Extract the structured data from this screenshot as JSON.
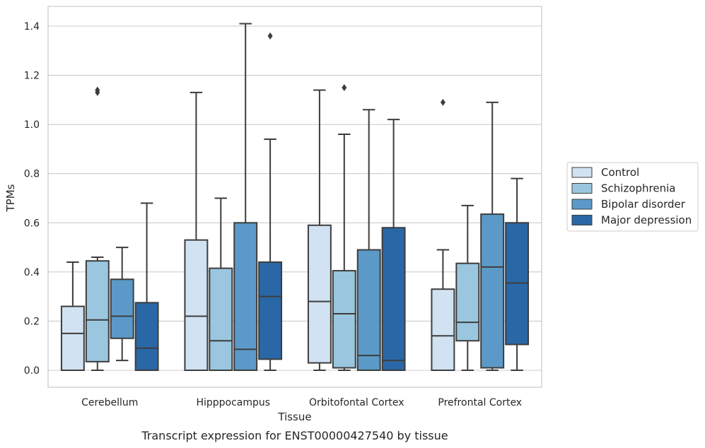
{
  "caption": "Transcript expression for ENST00000427540 by tissue",
  "chart_data": {
    "type": "box",
    "xlabel": "Tissue",
    "ylabel": "TPMs",
    "ylim": [
      -0.07,
      1.48
    ],
    "yticks": [
      "0.0",
      "0.2",
      "0.4",
      "0.6",
      "0.8",
      "1.0",
      "1.2",
      "1.4"
    ],
    "grid": true,
    "legend_position": "right",
    "categories": [
      "Cerebellum",
      "Hipppocampus",
      "Orbitofontal Cortex",
      "Prefrontal Cortex"
    ],
    "series": [
      {
        "name": "Control",
        "color": "#d1e2f2",
        "boxes": [
          {
            "min": 0.0,
            "q1": 0.0,
            "median": 0.15,
            "q3": 0.26,
            "max": 0.44,
            "outliers": []
          },
          {
            "min": 0.0,
            "q1": 0.0,
            "median": 0.22,
            "q3": 0.53,
            "max": 1.13,
            "outliers": []
          },
          {
            "min": 0.0,
            "q1": 0.03,
            "median": 0.28,
            "q3": 0.59,
            "max": 1.14,
            "outliers": []
          },
          {
            "min": 0.0,
            "q1": 0.0,
            "median": 0.14,
            "q3": 0.33,
            "max": 0.49,
            "outliers": [
              1.09
            ]
          }
        ]
      },
      {
        "name": "Schizophrenia",
        "color": "#9ac7df",
        "boxes": [
          {
            "min": 0.0,
            "q1": 0.035,
            "median": 0.205,
            "q3": 0.445,
            "max": 0.46,
            "outliers": [
              1.13,
              1.14
            ]
          },
          {
            "min": 0.0,
            "q1": 0.0,
            "median": 0.12,
            "q3": 0.415,
            "max": 0.7,
            "outliers": []
          },
          {
            "min": 0.0,
            "q1": 0.01,
            "median": 0.23,
            "q3": 0.405,
            "max": 0.96,
            "outliers": [
              1.15
            ]
          },
          {
            "min": 0.0,
            "q1": 0.12,
            "median": 0.195,
            "q3": 0.435,
            "max": 0.67,
            "outliers": []
          }
        ]
      },
      {
        "name": "Bipolar disorder",
        "color": "#5b9ac8",
        "boxes": [
          {
            "min": 0.04,
            "q1": 0.13,
            "median": 0.22,
            "q3": 0.37,
            "max": 0.5,
            "outliers": []
          },
          {
            "min": 0.0,
            "q1": 0.0,
            "median": 0.085,
            "q3": 0.6,
            "max": 1.41,
            "outliers": []
          },
          {
            "min": 0.0,
            "q1": 0.0,
            "median": 0.06,
            "q3": 0.49,
            "max": 1.06,
            "outliers": []
          },
          {
            "min": 0.0,
            "q1": 0.01,
            "median": 0.42,
            "q3": 0.635,
            "max": 1.09,
            "outliers": []
          }
        ]
      },
      {
        "name": "Major depression",
        "color": "#2a67a6",
        "boxes": [
          {
            "min": 0.0,
            "q1": 0.0,
            "median": 0.09,
            "q3": 0.275,
            "max": 0.68,
            "outliers": []
          },
          {
            "min": 0.0,
            "q1": 0.045,
            "median": 0.3,
            "q3": 0.44,
            "max": 0.94,
            "outliers": [
              1.36
            ]
          },
          {
            "min": 0.0,
            "q1": 0.0,
            "median": 0.04,
            "q3": 0.58,
            "max": 1.02,
            "outliers": []
          },
          {
            "min": 0.0,
            "q1": 0.105,
            "median": 0.355,
            "q3": 0.6,
            "max": 0.78,
            "outliers": []
          }
        ]
      }
    ]
  }
}
